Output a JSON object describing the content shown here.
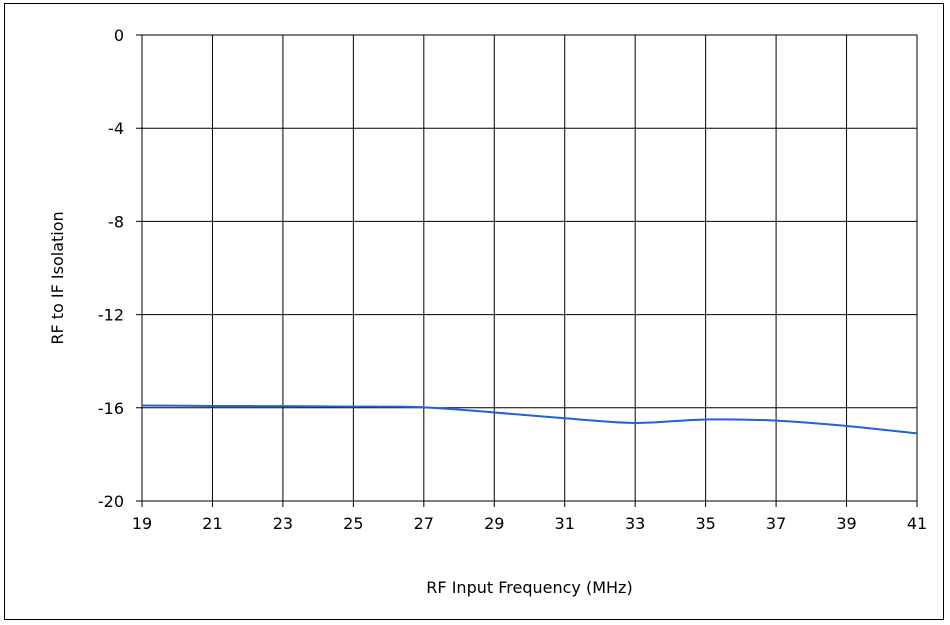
{
  "chart_data": {
    "type": "line",
    "title": "",
    "xlabel": "RF Input Frequency (MHz)",
    "ylabel": "RF to IF Isolation",
    "xlim": [
      19,
      41
    ],
    "ylim": [
      -20,
      0
    ],
    "x_ticks": [
      19,
      21,
      23,
      25,
      27,
      29,
      31,
      33,
      35,
      37,
      39,
      41
    ],
    "y_ticks": [
      0,
      -4,
      -8,
      -12,
      -16,
      -20
    ],
    "x_tick_labels": [
      "19",
      "21",
      "23",
      "25",
      "27",
      "29",
      "31",
      "33",
      "35",
      "37",
      "39",
      "41"
    ],
    "y_tick_labels": [
      "0",
      "-4",
      "-8",
      "-12",
      "-16",
      "-20"
    ],
    "grid": true,
    "legend": "none",
    "series": [
      {
        "color": "#1f64d6",
        "x": [
          19,
          21,
          23,
          25,
          27,
          29,
          31,
          33,
          35,
          37,
          39,
          41
        ],
        "y": [
          -15.9,
          -15.92,
          -15.93,
          -15.95,
          -15.98,
          -16.2,
          -16.45,
          -16.65,
          -16.5,
          -16.55,
          -16.78,
          -17.1
        ]
      }
    ]
  }
}
